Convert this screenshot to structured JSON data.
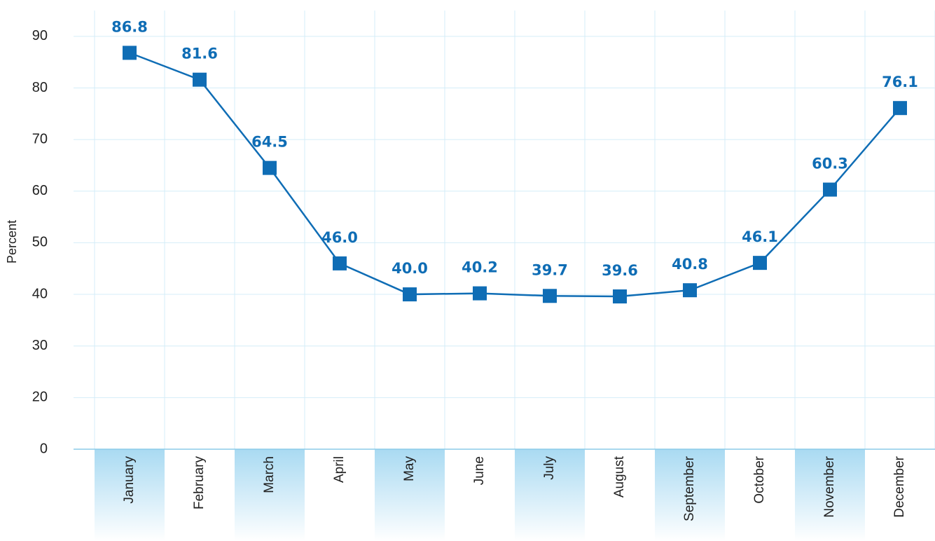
{
  "chart_data": {
    "type": "line",
    "y_label": "Percent",
    "categories": [
      "January",
      "February",
      "March",
      "April",
      "May",
      "June",
      "July",
      "August",
      "September",
      "October",
      "November",
      "December"
    ],
    "values": [
      86.8,
      81.6,
      64.5,
      46.0,
      40.0,
      40.2,
      39.7,
      39.6,
      40.8,
      46.1,
      60.3,
      76.1
    ],
    "value_labels": [
      "86.8",
      "81.6",
      "64.5",
      "46.0",
      "40.0",
      "40.2",
      "39.7",
      "39.6",
      "40.8",
      "46.1",
      "60.3",
      "76.1"
    ],
    "color": "#0f6db5",
    "ylim": [
      10,
      95
    ],
    "yticks": [
      {
        "value": 10,
        "label": "0"
      },
      20,
      30,
      40,
      50,
      60,
      70,
      80,
      90
    ],
    "grid": true
  }
}
